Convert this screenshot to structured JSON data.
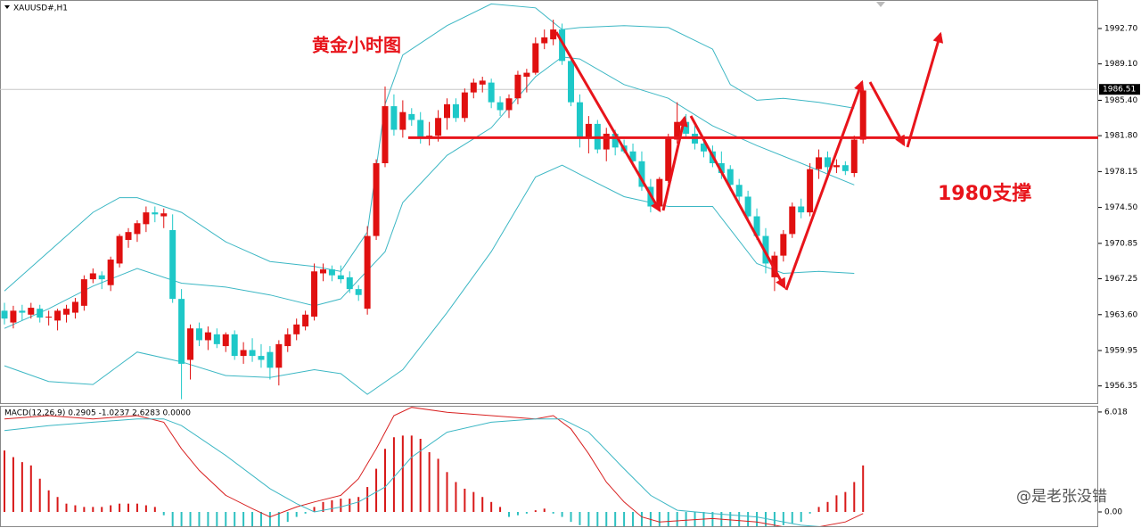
{
  "symbol": "XAUUSD#,H1",
  "watermark": "@是老张没错",
  "chart_data": [
    {
      "type": "candlestick",
      "title": "黄金小时图",
      "annotation": "1980支撑",
      "up_color": "#e01010",
      "down_color": "#1ec8c8",
      "band_color": "#3cb7c4",
      "current_price": {
        "value": 1986.51,
        "label": "1986.51"
      },
      "support_line": 1981.6,
      "ylim": [
        1954.6,
        1995.6
      ],
      "yticks": [
        {
          "value": 1992.7,
          "label": "1992.70"
        },
        {
          "value": 1989.1,
          "label": "1989.10"
        },
        {
          "value": 1985.4,
          "label": "1985.40"
        },
        {
          "value": 1981.8,
          "label": "1981.80"
        },
        {
          "value": 1978.15,
          "label": "1978.15"
        },
        {
          "value": 1974.5,
          "label": "1974.50"
        },
        {
          "value": 1970.85,
          "label": "1970.85"
        },
        {
          "value": 1967.25,
          "label": "1967.25"
        },
        {
          "value": 1963.6,
          "label": "1963.60"
        },
        {
          "value": 1959.95,
          "label": "1959.95"
        },
        {
          "value": 1956.35,
          "label": "1956.35"
        }
      ],
      "candles": [
        [
          1964.0,
          1964.8,
          1962.6,
          1963.2
        ],
        [
          1962.8,
          1964.5,
          1962.2,
          1964.0
        ],
        [
          1964.0,
          1964.6,
          1963.0,
          1963.8
        ],
        [
          1963.6,
          1964.8,
          1963.2,
          1964.3
        ],
        [
          1964.2,
          1964.6,
          1962.8,
          1963.3
        ],
        [
          1963.3,
          1964.0,
          1962.5,
          1963.4
        ],
        [
          1963.0,
          1964.2,
          1962.0,
          1964.0
        ],
        [
          1963.6,
          1964.6,
          1962.8,
          1964.2
        ],
        [
          1963.8,
          1965.3,
          1963.2,
          1964.9
        ],
        [
          1964.5,
          1967.6,
          1964.0,
          1967.2
        ],
        [
          1967.2,
          1968.3,
          1966.8,
          1967.8
        ],
        [
          1967.6,
          1968.0,
          1966.2,
          1967.2
        ],
        [
          1966.6,
          1969.5,
          1966.0,
          1969.2
        ],
        [
          1968.8,
          1971.8,
          1968.4,
          1971.6
        ],
        [
          1971.2,
          1972.4,
          1970.4,
          1972.0
        ],
        [
          1971.8,
          1973.2,
          1971.0,
          1972.9
        ],
        [
          1972.8,
          1974.6,
          1972.0,
          1974.0
        ],
        [
          1974.0,
          1974.6,
          1973.0,
          1973.8
        ],
        [
          1973.6,
          1974.4,
          1972.4,
          1973.9
        ],
        [
          1972.2,
          1973.8,
          1964.8,
          1965.2
        ],
        [
          1965.2,
          1966.2,
          1955.0,
          1958.6
        ],
        [
          1959.0,
          1962.6,
          1957.0,
          1962.2
        ],
        [
          1962.2,
          1962.8,
          1960.4,
          1961.0
        ],
        [
          1961.0,
          1962.4,
          1960.0,
          1961.8
        ],
        [
          1961.6,
          1962.2,
          1960.2,
          1960.6
        ],
        [
          1960.4,
          1961.8,
          1959.8,
          1961.6
        ],
        [
          1961.6,
          1962.0,
          1959.0,
          1959.4
        ],
        [
          1959.4,
          1960.8,
          1958.6,
          1960.0
        ],
        [
          1960.0,
          1961.2,
          1958.8,
          1959.4
        ],
        [
          1959.4,
          1960.6,
          1958.2,
          1959.0
        ],
        [
          1959.8,
          1960.4,
          1957.0,
          1958.2
        ],
        [
          1958.2,
          1961.0,
          1956.4,
          1960.6
        ],
        [
          1960.4,
          1962.2,
          1959.8,
          1961.6
        ],
        [
          1961.6,
          1963.2,
          1961.0,
          1962.6
        ],
        [
          1962.4,
          1964.0,
          1962.0,
          1963.6
        ],
        [
          1963.4,
          1968.8,
          1963.0,
          1968.0
        ],
        [
          1967.8,
          1968.8,
          1967.0,
          1968.2
        ],
        [
          1968.2,
          1968.6,
          1967.0,
          1967.6
        ],
        [
          1967.6,
          1968.6,
          1966.8,
          1967.2
        ],
        [
          1967.4,
          1968.0,
          1965.8,
          1966.2
        ],
        [
          1966.2,
          1966.6,
          1965.0,
          1965.6
        ],
        [
          1964.2,
          1972.6,
          1963.6,
          1971.6
        ],
        [
          1971.6,
          1979.4,
          1971.2,
          1979.0
        ],
        [
          1979.0,
          1986.8,
          1978.6,
          1984.8
        ],
        [
          1984.8,
          1986.0,
          1981.8,
          1982.4
        ],
        [
          1982.4,
          1985.4,
          1981.6,
          1984.2
        ],
        [
          1984.0,
          1984.6,
          1982.8,
          1983.4
        ],
        [
          1983.4,
          1984.2,
          1981.0,
          1981.6
        ],
        [
          1981.6,
          1983.2,
          1980.8,
          1981.8
        ],
        [
          1981.8,
          1984.4,
          1981.2,
          1983.6
        ],
        [
          1983.6,
          1985.6,
          1982.4,
          1985.0
        ],
        [
          1985.0,
          1985.6,
          1983.2,
          1983.6
        ],
        [
          1983.6,
          1986.6,
          1983.2,
          1986.2
        ],
        [
          1986.2,
          1987.6,
          1985.6,
          1987.2
        ],
        [
          1987.0,
          1987.8,
          1986.2,
          1987.4
        ],
        [
          1987.2,
          1987.6,
          1984.6,
          1985.2
        ],
        [
          1985.2,
          1985.8,
          1983.8,
          1984.4
        ],
        [
          1984.4,
          1986.0,
          1983.6,
          1985.6
        ],
        [
          1985.6,
          1988.4,
          1985.0,
          1988.0
        ],
        [
          1987.8,
          1988.6,
          1986.2,
          1988.2
        ],
        [
          1988.2,
          1991.8,
          1988.0,
          1991.2
        ],
        [
          1991.2,
          1992.6,
          1990.6,
          1991.8
        ],
        [
          1991.6,
          1993.6,
          1991.0,
          1992.6
        ],
        [
          1992.6,
          1993.2,
          1989.0,
          1989.4
        ],
        [
          1989.4,
          1990.0,
          1984.8,
          1985.2
        ],
        [
          1985.2,
          1986.0,
          1980.6,
          1981.6
        ],
        [
          1981.6,
          1983.8,
          1980.0,
          1983.0
        ],
        [
          1983.0,
          1983.4,
          1980.0,
          1980.4
        ],
        [
          1980.4,
          1982.6,
          1979.2,
          1982.0
        ],
        [
          1982.0,
          1982.4,
          1979.8,
          1980.6
        ],
        [
          1980.8,
          1981.4,
          1980.0,
          1980.2
        ],
        [
          1980.2,
          1981.0,
          1978.6,
          1979.2
        ],
        [
          1979.2,
          1980.2,
          1976.2,
          1976.6
        ],
        [
          1976.6,
          1977.4,
          1974.0,
          1974.6
        ],
        [
          1974.6,
          1977.6,
          1974.2,
          1977.4
        ],
        [
          1977.2,
          1982.0,
          1977.0,
          1981.6
        ],
        [
          1981.4,
          1985.2,
          1981.0,
          1983.2
        ],
        [
          1983.2,
          1984.0,
          1981.6,
          1982.0
        ],
        [
          1982.0,
          1982.8,
          1980.4,
          1981.0
        ],
        [
          1981.0,
          1981.6,
          1979.6,
          1980.2
        ],
        [
          1980.2,
          1980.8,
          1978.6,
          1979.0
        ],
        [
          1979.0,
          1980.2,
          1977.4,
          1978.0
        ],
        [
          1978.4,
          1978.8,
          1976.2,
          1976.8
        ],
        [
          1976.8,
          1977.4,
          1975.0,
          1975.6
        ],
        [
          1975.6,
          1976.2,
          1973.0,
          1973.6
        ],
        [
          1973.6,
          1974.4,
          1971.2,
          1971.6
        ],
        [
          1971.6,
          1972.4,
          1967.8,
          1968.8
        ],
        [
          1967.4,
          1970.0,
          1966.0,
          1969.6
        ],
        [
          1969.6,
          1972.2,
          1969.0,
          1971.8
        ],
        [
          1971.8,
          1975.0,
          1971.4,
          1974.6
        ],
        [
          1974.6,
          1975.4,
          1973.4,
          1974.0
        ],
        [
          1974.0,
          1979.0,
          1973.6,
          1978.4
        ],
        [
          1978.4,
          1980.4,
          1977.4,
          1979.6
        ],
        [
          1979.6,
          1980.2,
          1978.0,
          1978.6
        ],
        [
          1978.6,
          1979.4,
          1978.0,
          1978.8
        ],
        [
          1978.8,
          1979.2,
          1977.8,
          1978.2
        ],
        [
          1978.0,
          1981.8,
          1977.6,
          1981.4
        ],
        [
          1981.4,
          1986.6,
          1981.0,
          1986.4
        ]
      ],
      "bands": [
        {
          "x": [
            0,
            5,
            10,
            13,
            15,
            20,
            25,
            30,
            35,
            38,
            41,
            43,
            45,
            50,
            55,
            60,
            63,
            65,
            70,
            75,
            80,
            82,
            85,
            88,
            92,
            96
          ],
          "values": [
            1966.0,
            1970.0,
            1974.0,
            1975.5,
            1975.5,
            1974.0,
            1971.0,
            1969.0,
            1968.5,
            1968.0,
            1972.0,
            1985.0,
            1990.0,
            1993.0,
            1995.2,
            1994.8,
            1992.6,
            1992.8,
            1993.0,
            1992.8,
            1990.6,
            1987.0,
            1985.4,
            1985.6,
            1985.2,
            1984.6
          ]
        },
        {
          "x": [
            0,
            5,
            10,
            15,
            20,
            25,
            30,
            35,
            38,
            43,
            45,
            50,
            55,
            60,
            63,
            65,
            70,
            75,
            80,
            85,
            90,
            96
          ],
          "values": [
            1962.2,
            1964.2,
            1966.5,
            1968.3,
            1966.8,
            1966.4,
            1965.6,
            1964.5,
            1965.2,
            1970.0,
            1975.0,
            1979.8,
            1982.6,
            1987.8,
            1989.8,
            1989.6,
            1987.0,
            1985.6,
            1982.8,
            1980.8,
            1979.0,
            1976.8
          ]
        },
        {
          "x": [
            0,
            5,
            10,
            15,
            20,
            25,
            30,
            35,
            38,
            41,
            45,
            50,
            55,
            60,
            63,
            66,
            70,
            75,
            80,
            85,
            88,
            92,
            96
          ],
          "values": [
            1958.4,
            1956.8,
            1956.5,
            1959.8,
            1958.8,
            1957.4,
            1957.2,
            1958.0,
            1957.6,
            1955.5,
            1958.0,
            1963.8,
            1970.0,
            1977.6,
            1978.8,
            1977.4,
            1975.6,
            1974.6,
            1974.6,
            1968.8,
            1967.8,
            1968.0,
            1967.8
          ]
        }
      ]
    },
    {
      "type": "macd",
      "title": "MACD(12,26,9) 0.2905 -1.0237 2.6283 0.0000",
      "ylim": [
        -0.86,
        6.39
      ],
      "yticks": [
        {
          "value": 6.018,
          "label": "6.018"
        },
        {
          "value": 0,
          "label": "0.00"
        }
      ],
      "histogram": {
        "up_color": "#d81818",
        "down_color": "#2cc0c0",
        "values": [
          3.7,
          3.3,
          3.0,
          2.8,
          2.0,
          1.3,
          0.9,
          0.5,
          0.4,
          0.3,
          0.3,
          0.3,
          0.4,
          0.5,
          0.5,
          0.5,
          0.4,
          0.3,
          -0.2,
          -1.0,
          -1.2,
          -1.2,
          -1.2,
          -1.2,
          -1.2,
          -1.2,
          -1.2,
          -1.2,
          -1.2,
          -1.2,
          -1.2,
          -0.9,
          -0.6,
          -0.3,
          -0.1,
          0.3,
          0.6,
          0.7,
          0.8,
          0.8,
          0.9,
          1.5,
          2.6,
          3.8,
          4.5,
          4.6,
          4.6,
          4.4,
          3.6,
          3.2,
          2.4,
          1.8,
          1.4,
          1.2,
          0.9,
          0.6,
          0.3,
          -0.3,
          -0.2,
          -0.1,
          0.1,
          0.2,
          -0.1,
          -0.3,
          -0.6,
          -0.8,
          -0.9,
          -1.0,
          -1.0,
          -1.0,
          -1.0,
          -1.0,
          -1.0,
          -1.0,
          -1.0,
          -1.0,
          -1.0,
          -1.0,
          -1.0,
          -1.0,
          -1.0,
          -1.0,
          -1.0,
          -1.0,
          -1.0,
          -1.0,
          -1.0,
          -0.9,
          -0.8,
          -0.7,
          -0.6,
          -0.1,
          0.3,
          0.6,
          1.0,
          1.2,
          1.8,
          2.8
        ]
      },
      "lines": [
        {
          "color": "#d82020",
          "x": [
            0,
            5,
            10,
            15,
            18,
            20,
            22,
            25,
            28,
            30,
            33,
            35,
            38,
            40,
            42,
            44,
            46,
            50,
            55,
            60,
            62,
            64,
            66,
            68,
            70,
            72,
            74,
            80,
            85,
            88,
            92,
            95,
            97
          ],
          "values": [
            5.6,
            5.8,
            5.6,
            5.8,
            5.4,
            3.8,
            2.5,
            1.0,
            0.2,
            -0.3,
            0.3,
            0.6,
            1.0,
            2.0,
            3.8,
            5.8,
            6.3,
            6.0,
            5.8,
            5.6,
            5.8,
            5.0,
            3.5,
            1.8,
            0.6,
            -0.3,
            -0.6,
            -0.4,
            -0.6,
            -0.9,
            -0.9,
            -0.6,
            -0.1
          ]
        },
        {
          "color": "#3cb7c4",
          "x": [
            0,
            5,
            10,
            15,
            18,
            20,
            25,
            30,
            33,
            35,
            38,
            40,
            43,
            46,
            50,
            55,
            60,
            63,
            66,
            70,
            73,
            76,
            80,
            85,
            90,
            95,
            97
          ],
          "values": [
            4.9,
            5.2,
            5.4,
            5.6,
            5.6,
            5.2,
            3.4,
            1.4,
            0.5,
            0.0,
            0.3,
            0.6,
            1.5,
            3.3,
            4.8,
            5.4,
            5.6,
            5.6,
            4.8,
            2.6,
            1.0,
            0.1,
            -0.1,
            -0.3,
            -0.8,
            -1.0,
            -0.9
          ]
        }
      ]
    }
  ]
}
